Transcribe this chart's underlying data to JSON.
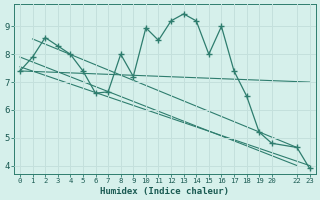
{
  "xlabel": "Humidex (Indice chaleur)",
  "bg_color": "#d6f0eb",
  "grid_color": "#c4e0dc",
  "line_color": "#2e7d6e",
  "xlim": [
    -0.5,
    23.5
  ],
  "ylim": [
    3.7,
    9.8
  ],
  "xtick_labels": [
    "0",
    "1",
    "2",
    "3",
    "4",
    "5",
    "6",
    "7",
    "8",
    "9",
    "10",
    "11",
    "12",
    "13",
    "14",
    "15",
    "16",
    "17",
    "18",
    "19",
    "20",
    "22",
    "23"
  ],
  "xtick_pos": [
    0,
    1,
    2,
    3,
    4,
    5,
    6,
    7,
    8,
    9,
    10,
    11,
    12,
    13,
    14,
    15,
    16,
    17,
    18,
    19,
    20,
    22,
    23
  ],
  "yticks": [
    4,
    5,
    6,
    7,
    8,
    9
  ],
  "main_curve": {
    "x": [
      0,
      1,
      2,
      3,
      4,
      5,
      6,
      7,
      8,
      9,
      10,
      11,
      12,
      13,
      14,
      15,
      16,
      17,
      18,
      19,
      20,
      22,
      23
    ],
    "y": [
      7.4,
      7.9,
      8.6,
      8.3,
      8.0,
      7.4,
      6.6,
      6.65,
      8.0,
      7.2,
      8.95,
      8.5,
      9.2,
      9.45,
      9.2,
      8.0,
      9.0,
      7.4,
      6.5,
      5.2,
      4.8,
      4.65,
      3.9
    ]
  },
  "trend_lines": [
    {
      "x": [
        1,
        22
      ],
      "y": [
        8.55,
        4.65
      ]
    },
    {
      "x": [
        0,
        22
      ],
      "y": [
        7.9,
        4.0
      ]
    },
    {
      "x": [
        0,
        23
      ],
      "y": [
        7.55,
        4.0
      ]
    },
    {
      "x": [
        0,
        23
      ],
      "y": [
        7.4,
        7.0
      ]
    }
  ]
}
